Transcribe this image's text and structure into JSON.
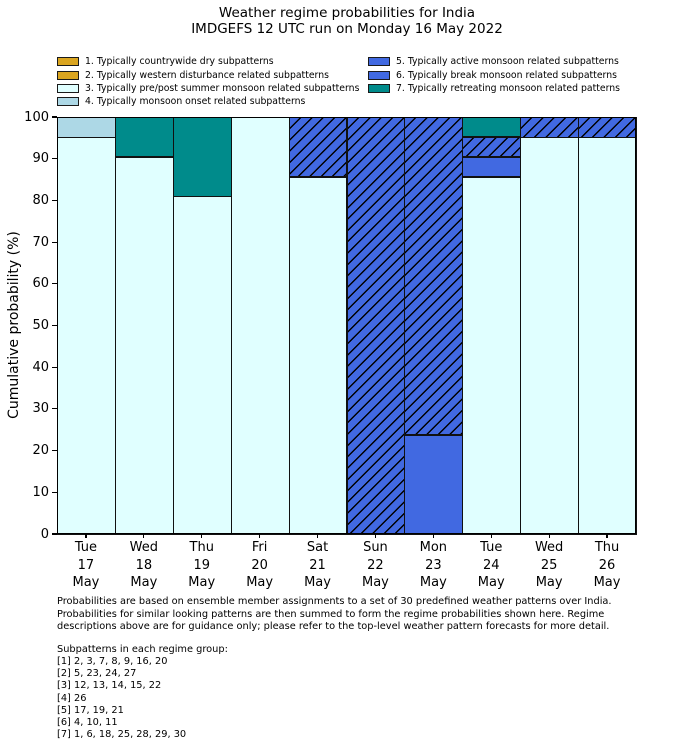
{
  "title": {
    "line1": "Weather regime probabilities for India",
    "line2": "IMDGEFS 12 UTC run on Monday 16 May 2022"
  },
  "legend": {
    "items": [
      {
        "regime": 1,
        "label": "1. Typically countrywide dry subpatterns"
      },
      {
        "regime": 2,
        "label": "2. Typically western disturbance related subpatterns"
      },
      {
        "regime": 3,
        "label": "3. Typically pre/post summer monsoon related subpatterns"
      },
      {
        "regime": 4,
        "label": "4. Typically monsoon onset related subpatterns"
      },
      {
        "regime": 5,
        "label": "5. Typically active monsoon related subpatterns"
      },
      {
        "regime": 6,
        "label": "6. Typically break monsoon related subpatterns"
      },
      {
        "regime": 7,
        "label": "7. Typically retreating monsoon related patterns"
      }
    ]
  },
  "chart_data": {
    "type": "stacked_bar",
    "title": "Weather regime probabilities for India",
    "subtitle": "IMDGEFS 12 UTC run on Monday 16 May 2022",
    "ylabel": "Cumulative probability (%)",
    "xlabel": "",
    "ylim": [
      0,
      100
    ],
    "yticks": [
      0,
      10,
      20,
      30,
      40,
      50,
      60,
      70,
      80,
      90,
      100
    ],
    "grid": false,
    "legend_position": "upper-left-two-columns",
    "regimes": {
      "1": {
        "name": "countrywide dry",
        "color": "#DAA520",
        "hatch": false
      },
      "2": {
        "name": "western disturbance",
        "color": "#DAA520",
        "hatch": true
      },
      "3": {
        "name": "pre/post summer monsoon",
        "color": "#E0FFFF",
        "hatch": false
      },
      "4": {
        "name": "monsoon onset",
        "color": "#ADD8E6",
        "hatch": false
      },
      "5": {
        "name": "active monsoon",
        "color": "#4169E1",
        "hatch": false
      },
      "6": {
        "name": "break monsoon",
        "color": "#4169E1",
        "hatch": true
      },
      "7": {
        "name": "retreating monsoon",
        "color": "#008B8B",
        "hatch": false
      }
    },
    "bars": [
      {
        "category": [
          "Tue",
          "17",
          "May"
        ],
        "segments": [
          {
            "regime": 3,
            "value": 95.2
          },
          {
            "regime": 4,
            "value": 4.8
          }
        ]
      },
      {
        "category": [
          "Wed",
          "18",
          "May"
        ],
        "segments": [
          {
            "regime": 3,
            "value": 90.5
          },
          {
            "regime": 7,
            "value": 9.5
          }
        ]
      },
      {
        "category": [
          "Thu",
          "19",
          "May"
        ],
        "segments": [
          {
            "regime": 3,
            "value": 81.0
          },
          {
            "regime": 7,
            "value": 19.0
          }
        ]
      },
      {
        "category": [
          "Fri",
          "20",
          "May"
        ],
        "segments": [
          {
            "regime": 3,
            "value": 100.0
          }
        ]
      },
      {
        "category": [
          "Sat",
          "21",
          "May"
        ],
        "segments": [
          {
            "regime": 3,
            "value": 85.7
          },
          {
            "regime": 6,
            "value": 14.3
          }
        ]
      },
      {
        "category": [
          "Sun",
          "22",
          "May"
        ],
        "segments": [
          {
            "regime": 6,
            "value": 100.0
          }
        ]
      },
      {
        "category": [
          "Mon",
          "23",
          "May"
        ],
        "segments": [
          {
            "regime": 5,
            "value": 23.8
          },
          {
            "regime": 6,
            "value": 76.2
          }
        ]
      },
      {
        "category": [
          "Tue",
          "24",
          "May"
        ],
        "segments": [
          {
            "regime": 3,
            "value": 85.7
          },
          {
            "regime": 5,
            "value": 4.8
          },
          {
            "regime": 6,
            "value": 4.8
          },
          {
            "regime": 7,
            "value": 4.7
          }
        ]
      },
      {
        "category": [
          "Wed",
          "25",
          "May"
        ],
        "segments": [
          {
            "regime": 3,
            "value": 95.2
          },
          {
            "regime": 6,
            "value": 4.8
          }
        ]
      },
      {
        "category": [
          "Thu",
          "26",
          "May"
        ],
        "segments": [
          {
            "regime": 3,
            "value": 95.2
          },
          {
            "regime": 6,
            "value": 4.8
          }
        ]
      }
    ]
  },
  "footnote": {
    "para_lines": [
      "Probabilities are based on ensemble member assignments to a set of 30 predefined weather patterns over India.",
      "Probabilities for similar looking patterns are then summed to form the regime probabilities shown here. Regime",
      "descriptions above are for guidance only; please refer to the top-level weather pattern forecasts for more detail."
    ],
    "subpatterns_title": "Subpatterns in each regime group:",
    "subpatterns_lines": [
      "[1] 2, 3, 7, 8, 9, 16, 20",
      "[2] 5, 23, 24, 27",
      "[3] 12, 13, 14, 15, 22",
      "[4] 26",
      "[5] 17, 19, 21",
      "[6] 4, 10, 11",
      "[7] 1, 6, 18, 25, 28, 29, 30"
    ]
  }
}
